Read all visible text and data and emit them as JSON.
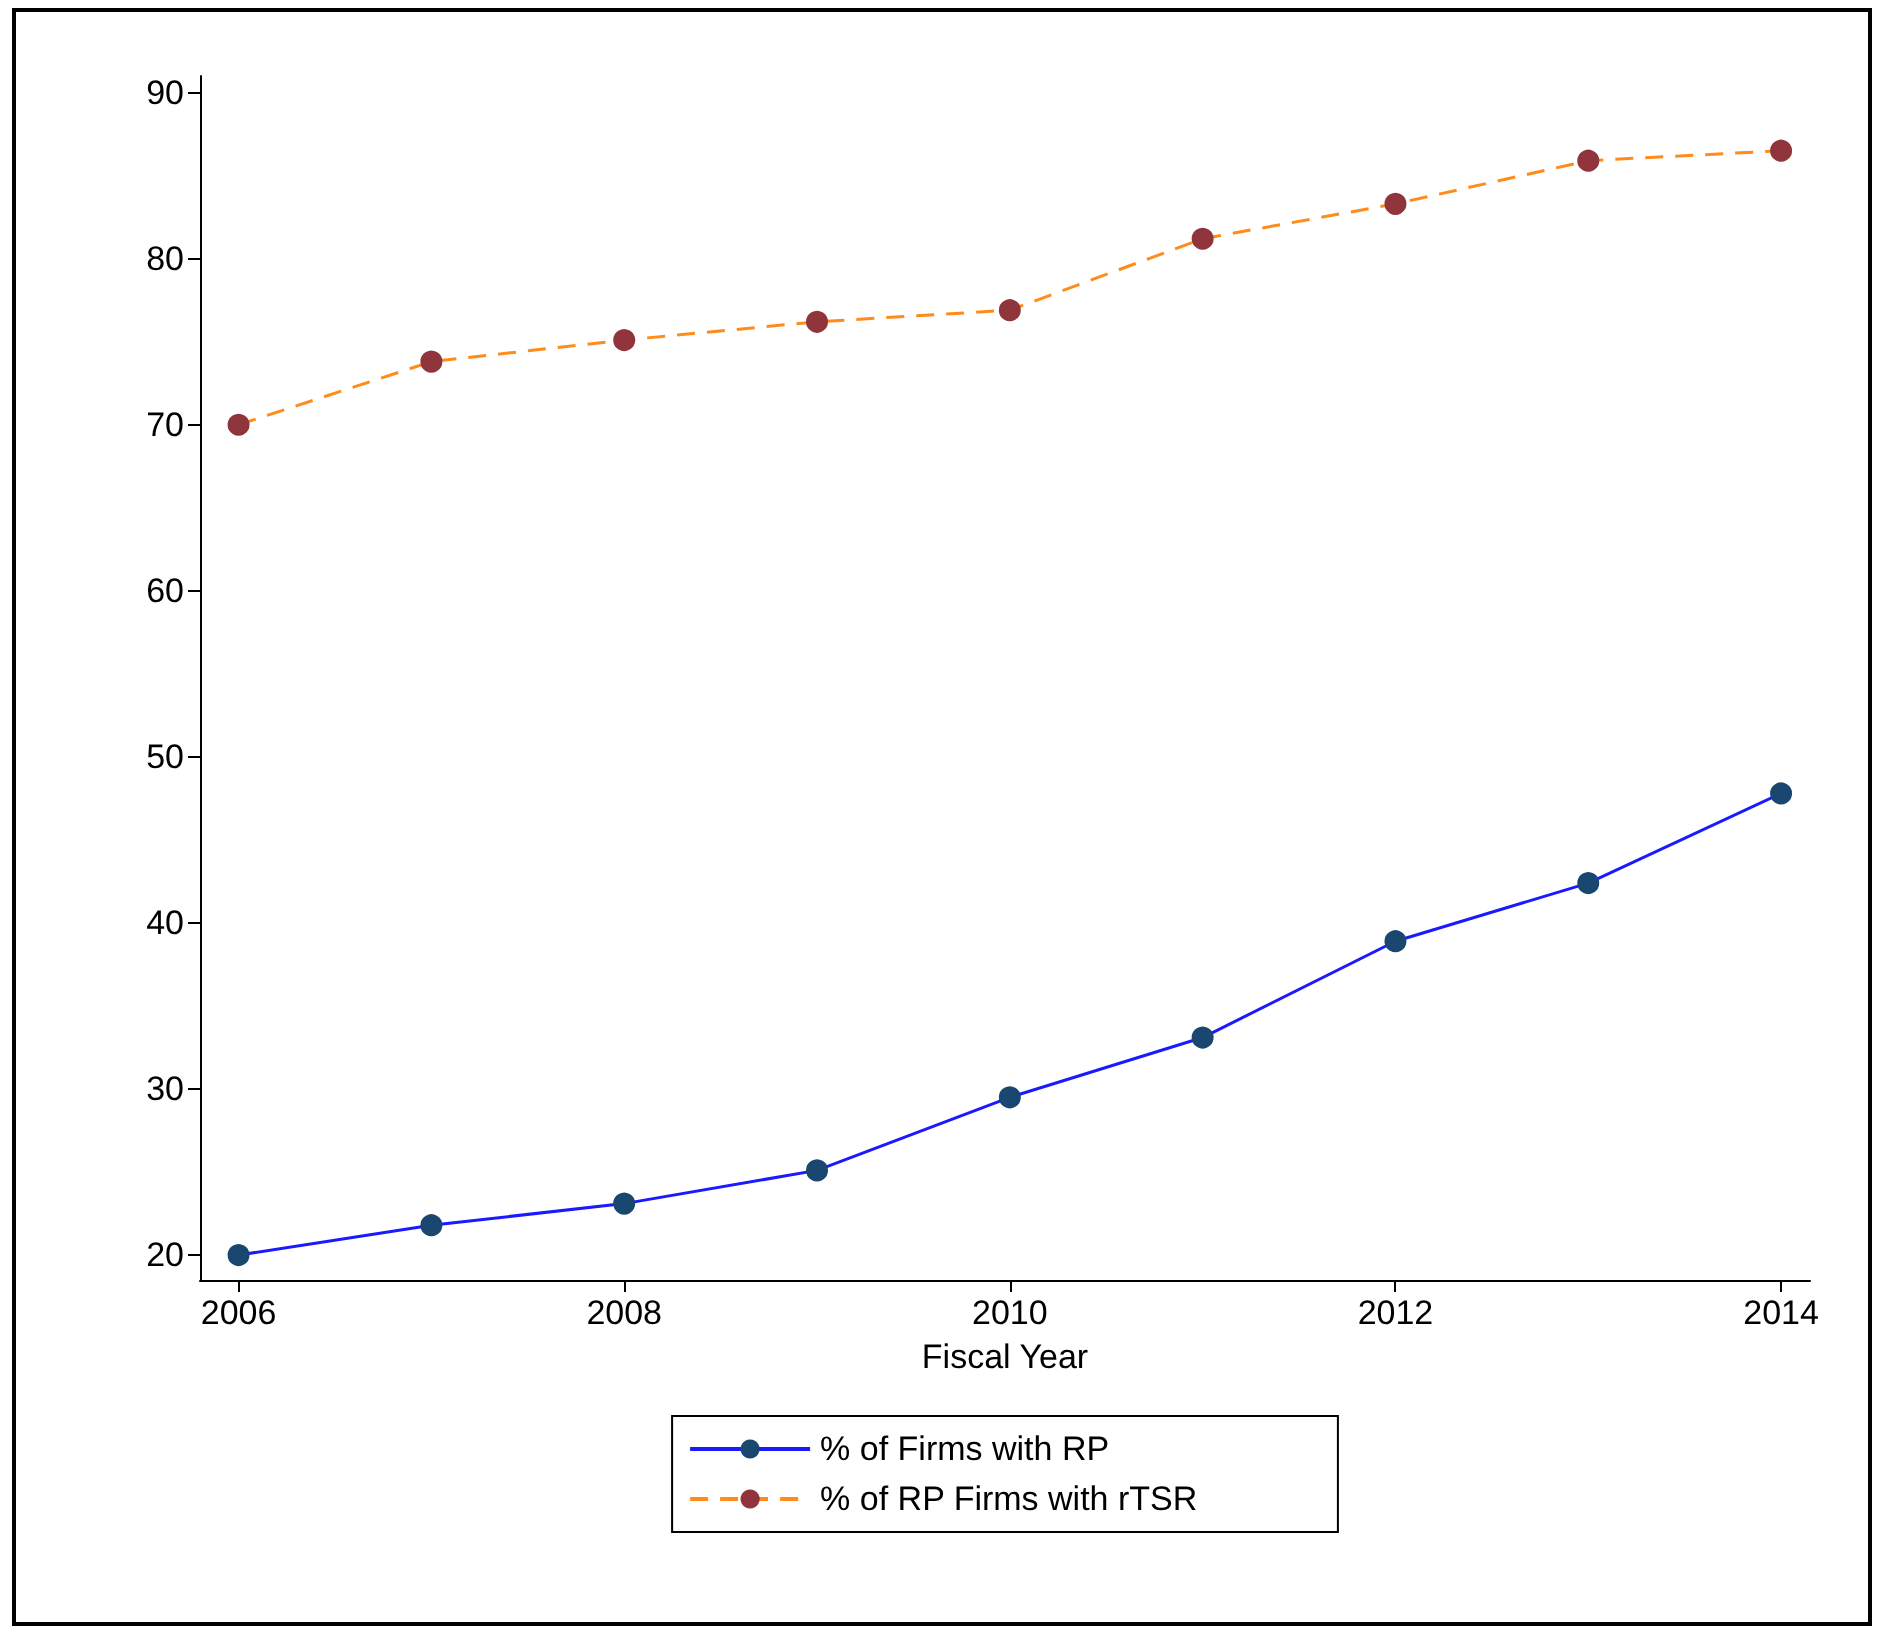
{
  "chart_data": {
    "type": "line",
    "xlabel": "Fiscal Year",
    "x": [
      2006,
      2007,
      2008,
      2009,
      2010,
      2011,
      2012,
      2013,
      2014
    ],
    "series": [
      {
        "name": "% of Firms with RP",
        "color": "#1a1aff",
        "line_style": "solid",
        "colors": [
          "#1a476f",
          "#1a476f",
          "#1a476f",
          "#1a476f",
          "#1a476f",
          "#1a476f",
          "#1a476f",
          "#1a476f",
          "#1a476f"
        ],
        "values": [
          20.0,
          21.8,
          23.1,
          25.1,
          29.5,
          33.1,
          38.9,
          42.4,
          47.8
        ]
      },
      {
        "name": "% of RP Firms with rTSR",
        "color": "#ff8c1a",
        "line_style": "dashed",
        "colors": [
          "#90353b",
          "#90353b",
          "#90353b",
          "#90353b",
          "#90353b",
          "#90353b",
          "#90353b",
          "#90353b",
          "#90353b"
        ],
        "values": [
          70.0,
          73.8,
          75.1,
          76.2,
          76.9,
          81.2,
          83.3,
          85.9,
          86.5
        ]
      }
    ],
    "xlim": [
      2005.8,
      2014.15
    ],
    "xticks": [
      2006,
      2008,
      2010,
      2012,
      2014
    ],
    "ylim": [
      18.5,
      91
    ],
    "yticks": [
      20,
      30,
      40,
      50,
      60,
      70,
      80,
      90
    ],
    "grid": false,
    "legend": "bottom",
    "marker": "circle"
  }
}
